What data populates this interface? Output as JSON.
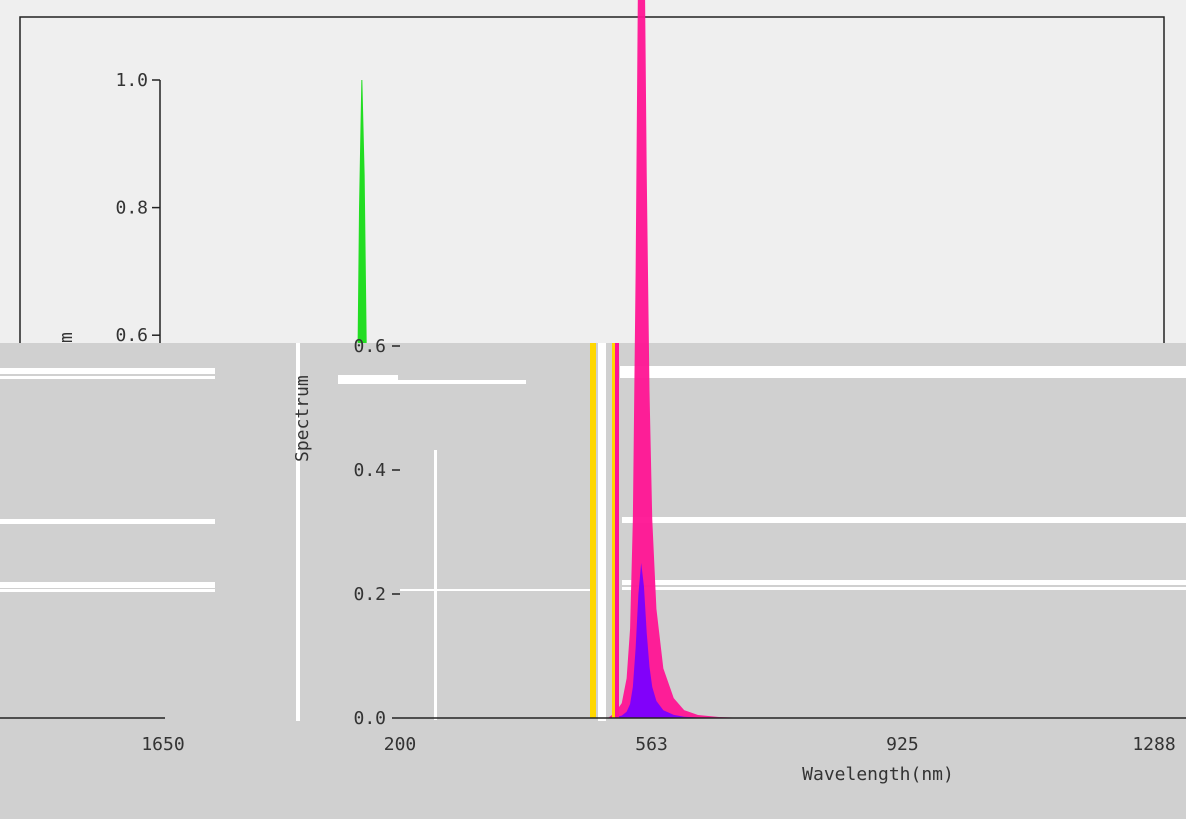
{
  "colors": {
    "page_background": "#efefef",
    "lower_panel_background": "#d0d0d0",
    "axis": "#222222",
    "text": "#333333",
    "spectrum_green": "#22dd22",
    "glitch_white": "#ffffff",
    "glitch_magenta": "#ff1493",
    "glitch_yellow": "#ffd700",
    "glitch_violet": "#7a00ff"
  },
  "chart_data": {
    "type": "area",
    "title": "",
    "xlabel": "Wavelength(nm)",
    "ylabel": "Spectrum",
    "xlim": [
      200,
      1288
    ],
    "ylim": [
      0,
      1.0
    ],
    "x_ticks": [
      "200",
      "563",
      "925",
      "1288"
    ],
    "extra_tick_labels": [
      "1650"
    ],
    "y_ticks": [
      "0.0",
      "0.2",
      "0.4",
      "0.6",
      "0.8",
      "1.0"
    ],
    "grid": false,
    "legend": "none",
    "series": [
      {
        "x": [
          500,
          510,
          520,
          527,
          532,
          536,
          540,
          544,
          548,
          552,
          556,
          560,
          564,
          570,
          580,
          595,
          610,
          630,
          660,
          700
        ],
        "y": [
          0.0,
          0.005,
          0.015,
          0.04,
          0.09,
          0.2,
          0.45,
          0.8,
          1.0,
          0.85,
          0.55,
          0.33,
          0.2,
          0.11,
          0.05,
          0.02,
          0.008,
          0.003,
          0.001,
          0.0
        ]
      }
    ]
  }
}
